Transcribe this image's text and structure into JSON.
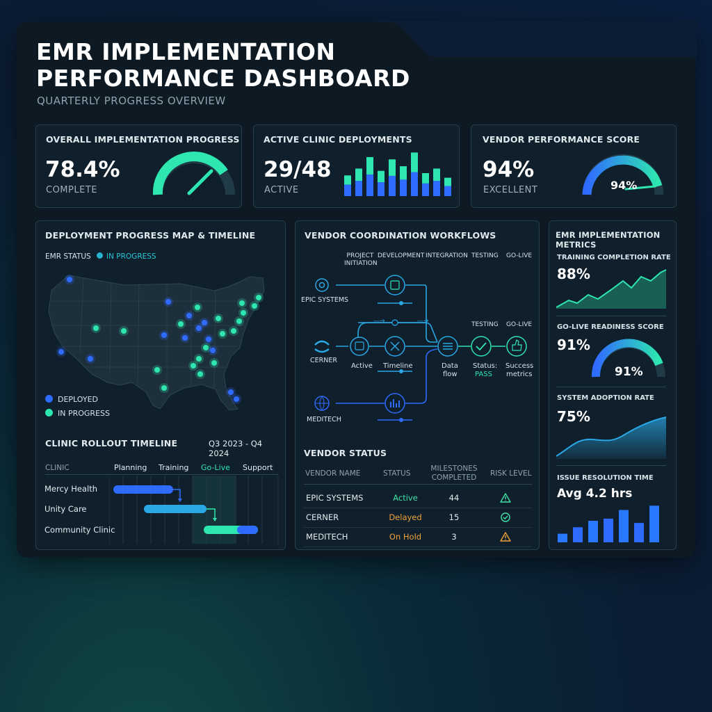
{
  "header": {
    "title_line1": "EMR IMPLEMENTATION",
    "title_line2": "PERFORMANCE DASHBOARD",
    "subtitle": "QUARTERLY PROGRESS OVERVIEW"
  },
  "kpis": {
    "overall": {
      "label": "OVERALL IMPLEMENTATION PROGRESS",
      "value": "78.4%",
      "caption": "COMPLETE",
      "progress": 0.784
    },
    "clinics": {
      "label": "ACTIVE CLINIC DEPLOYMENTS",
      "value": "29/48",
      "caption": "ACTIVE",
      "bars": [
        0.45,
        0.6,
        0.85,
        0.55,
        0.8,
        0.65,
        0.95,
        0.5,
        0.6,
        0.4
      ]
    },
    "vendor": {
      "label": "VENDOR PERFORMANCE SCORE",
      "value": "94%",
      "caption": "EXCELLENT",
      "gauge_text": "94%",
      "progress": 0.94
    }
  },
  "map": {
    "title": "DEPLOYMENT PROGRESS MAP & TIMELINE",
    "status_label": "EMR STATUS",
    "status_value": "IN PROGRESS",
    "legend_deployed": "DEPLOYED",
    "legend_in_progress": "IN PROGRESS",
    "colors": {
      "deployed": "#2f6bff",
      "in_progress": "#2ee6b0"
    }
  },
  "timeline": {
    "title": "CLINIC ROLLOUT TIMELINE",
    "range": "Q3 2023 - Q4 2024",
    "col_clinic": "CLINIC",
    "phases": [
      "Planning",
      "Training",
      "Go-Live",
      "Support"
    ],
    "clinics": [
      "Mercy Health",
      "Unity Care",
      "Community Clinic"
    ]
  },
  "workflow": {
    "title": "VENDOR COORDINATION WORKFLOWS",
    "stages": [
      "PROJECT\nINITIATION",
      "DEVELOPMENT",
      "INTEGRATION",
      "TESTING",
      "GO-LIVE"
    ],
    "stage_testing2": "TESTING",
    "stage_golive2": "GO-LIVE",
    "vendors": [
      "EPIC SYSTEMS",
      "CERNER",
      "MEDITECH"
    ],
    "nodes": {
      "active": "Active",
      "timeline": "Timeline",
      "data_flow_1": "Data",
      "data_flow_2": "flow",
      "status_1": "Status:",
      "status_2": "PASS",
      "success_1": "Success",
      "success_2": "metrics"
    }
  },
  "vendor_status": {
    "title": "VENDOR STATUS",
    "headers": {
      "name": "VENDOR NAME",
      "status": "STATUS",
      "milestones_1": "MILESTONES",
      "milestones_2": "COMPLETED",
      "risk": "RISK LEVEL"
    },
    "rows": [
      {
        "name": "EPIC SYSTEMS",
        "status": "Active",
        "milestones": "44",
        "risk_icon": "warning-icon",
        "status_color": "#3ee6a8"
      },
      {
        "name": "CERNER",
        "status": "Delayed",
        "milestones": "15",
        "risk_icon": "check-circle-icon",
        "status_color": "#f0a23a"
      },
      {
        "name": "MEDITECH",
        "status": "On Hold",
        "milestones": "3",
        "risk_icon": "warning-icon",
        "status_color": "#f0a23a"
      }
    ]
  },
  "metrics": {
    "title": "EMR IMPLEMENTATION METRICS",
    "training": {
      "label": "TRAINING COMPLETION RATE",
      "value": "88%"
    },
    "golive": {
      "label": "GO-LIVE READINESS SCORE",
      "value": "91%",
      "gauge_text": "91%",
      "progress": 0.91
    },
    "adoption": {
      "label": "SYSTEM ADOPTION RATE",
      "value": "75%"
    },
    "resolution": {
      "label": "ISSUE RESOLUTION TIME",
      "value": "Avg 4.2 hrs",
      "bars": [
        0.2,
        0.35,
        0.5,
        0.55,
        0.75,
        0.45,
        0.85
      ]
    }
  }
}
